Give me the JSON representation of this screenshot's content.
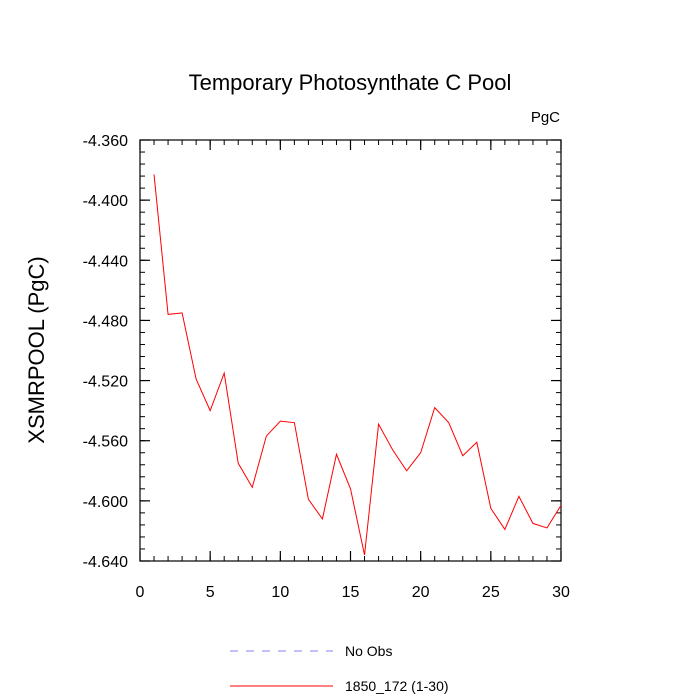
{
  "chart_data": {
    "type": "line",
    "title": "Temporary Photosynthate C Pool",
    "units_label": "PgC",
    "ylabel": "XSMRPOOL  (PgC)",
    "xlabel": "",
    "xlim": [
      0,
      30
    ],
    "ylim": [
      -4.64,
      -4.36
    ],
    "xticks": [
      0,
      5,
      10,
      15,
      20,
      25,
      30
    ],
    "yticks": [
      -4.36,
      -4.4,
      -4.44,
      -4.48,
      -4.52,
      -4.56,
      -4.6,
      -4.64
    ],
    "ytick_labels": [
      "-4.360",
      "-4.400",
      "-4.440",
      "-4.480",
      "-4.520",
      "-4.560",
      "-4.600",
      "-4.640"
    ],
    "grid": false,
    "legend_position": "bottom-center",
    "series": [
      {
        "name": "No Obs",
        "color": "#8080ff",
        "style": "dashed",
        "x": [],
        "values": []
      },
      {
        "name": "1850_172 (1-30)",
        "color": "#ff0000",
        "style": "solid",
        "x": [
          1,
          2,
          3,
          4,
          5,
          6,
          7,
          8,
          9,
          10,
          11,
          12,
          13,
          14,
          15,
          16,
          17,
          18,
          19,
          20,
          21,
          22,
          23,
          24,
          25,
          26,
          27,
          28,
          29,
          30
        ],
        "values": [
          -4.383,
          -4.476,
          -4.475,
          -4.519,
          -4.54,
          -4.515,
          -4.575,
          -4.591,
          -4.557,
          -4.547,
          -4.548,
          -4.599,
          -4.612,
          -4.569,
          -4.592,
          -4.636,
          -4.549,
          -4.566,
          -4.58,
          -4.568,
          -4.538,
          -4.548,
          -4.57,
          -4.561,
          -4.605,
          -4.619,
          -4.597,
          -4.615,
          -4.618,
          -4.603
        ]
      }
    ]
  }
}
